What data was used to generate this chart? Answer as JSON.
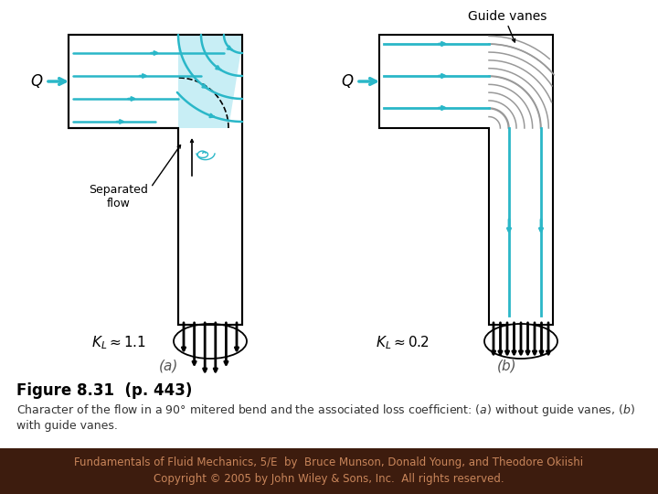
{
  "title_bold": "Figure 8.31  (p. 443)",
  "caption_a": "Character of the flow in a 90° mitered bend and the associated loss coefficient: (",
  "caption_italic_a": "a",
  "caption_b": ") without guide vanes, (",
  "caption_italic_b": "b",
  "caption_c": ")\nwith guide vanes.",
  "footer_line1": "Fundamentals of Fluid Mechanics, 5/E  by  Bruce Munson, Donald Young, and Theodore Okiishi",
  "footer_line2": "Copyright © 2005 by John Wiley & Sons, Inc.  All rights reserved.",
  "teal_color": "#2ab7c8",
  "black": "#000000",
  "gray_vane": "#999999",
  "background_color": "#ffffff",
  "footer_bg": "#3d1c0e",
  "footer_text_color": "#c8855a",
  "title_color": "#000000",
  "caption_color": "#333333",
  "light_blue_fill": "#c8eef5",
  "fig_width": 7.2,
  "fig_height": 5.4,
  "dpi": 100
}
